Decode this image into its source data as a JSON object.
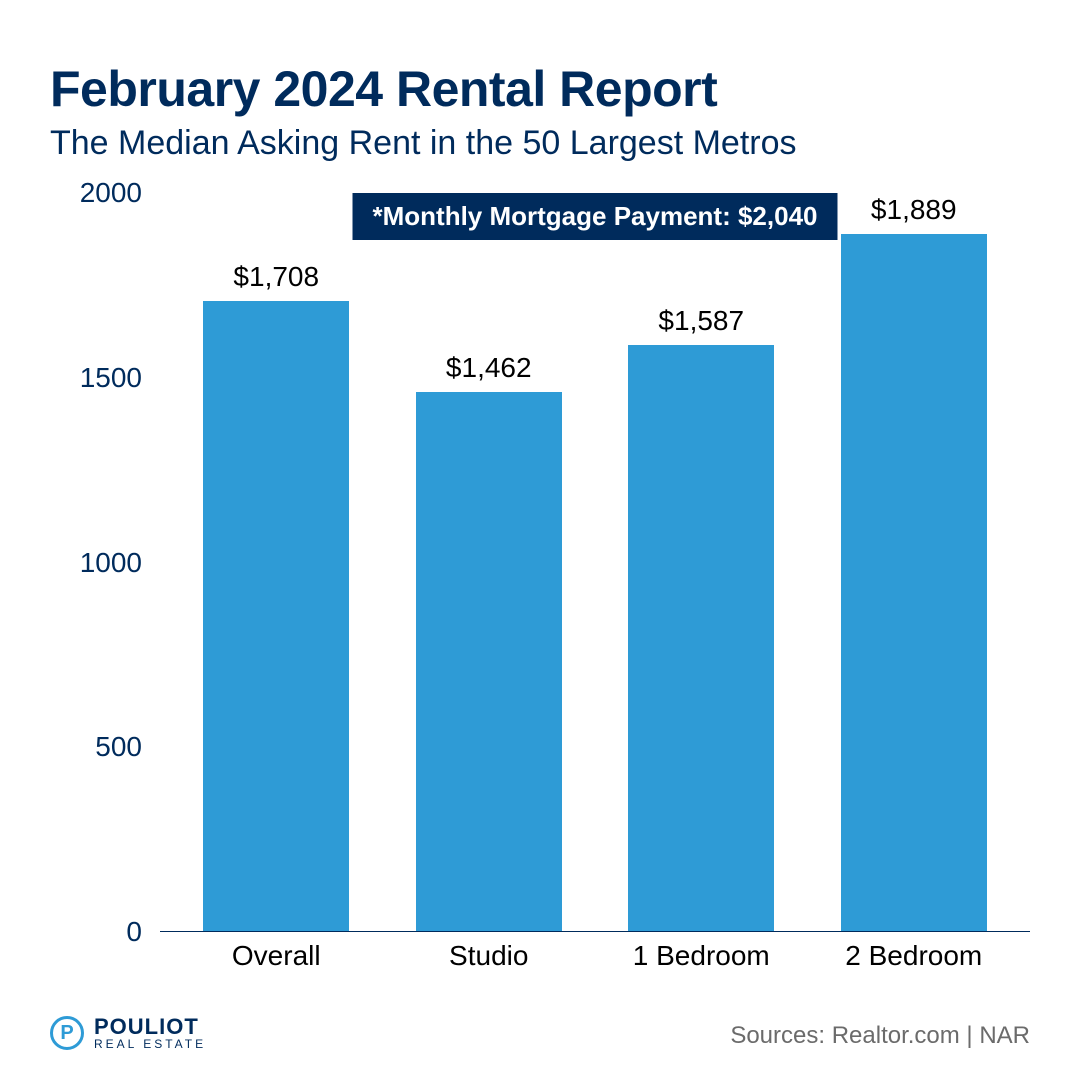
{
  "header": {
    "title": "February 2024 Rental Report",
    "subtitle": "The Median Asking Rent in the 50 Largest Metros"
  },
  "chart": {
    "type": "bar",
    "callout_text": "*Monthly Mortgage Payment: $2,040",
    "callout_bg": "#002b5c",
    "callout_color": "#ffffff",
    "ylim": [
      0,
      2000
    ],
    "ytick_step": 500,
    "yticks": [
      0,
      500,
      1000,
      1500,
      2000
    ],
    "categories": [
      "Overall",
      "Studio",
      "1 Bedroom",
      "2 Bedroom"
    ],
    "values": [
      1708,
      1462,
      1587,
      1889
    ],
    "value_labels": [
      "$1,708",
      "$1,462",
      "$1,587",
      "$1,889"
    ],
    "bar_color": "#2e9bd6",
    "axis_color": "#002b5c",
    "background_color": "#ffffff",
    "label_fontsize": 28,
    "tick_fontsize": 28,
    "bar_width": 0.78
  },
  "footer": {
    "brand_name": "POULIOT",
    "brand_sub": "REAL ESTATE",
    "brand_glyph": "P",
    "sources": "Sources: Realtor.com | NAR"
  }
}
